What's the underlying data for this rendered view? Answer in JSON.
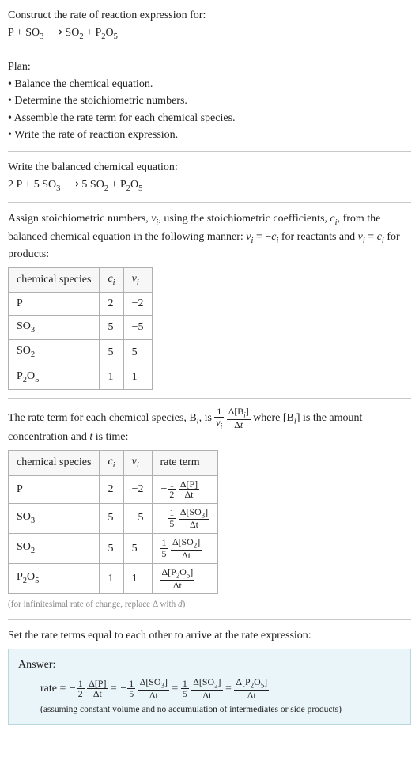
{
  "header": {
    "prompt": "Construct the rate of reaction expression for:",
    "eq_parts": {
      "lhs_a": "P",
      "plus": " + ",
      "lhs_b": "SO",
      "lhs_b_sub": "3",
      "arrow": " ⟶ ",
      "rhs_a": "SO",
      "rhs_a_sub": "2",
      "rhs_b": "P",
      "rhs_b_sub1": "2",
      "rhs_b_mid": "O",
      "rhs_b_sub2": "5"
    }
  },
  "plan": {
    "title": "Plan:",
    "items": [
      "Balance the chemical equation.",
      "Determine the stoichiometric numbers.",
      "Assemble the rate term for each chemical species.",
      "Write the rate of reaction expression."
    ],
    "bullet": "• "
  },
  "balanced": {
    "title": "Write the balanced chemical equation:",
    "eq": {
      "c1": "2 ",
      "s1": "P",
      "plus1": " + ",
      "c2": "5 ",
      "s2": "SO",
      "s2sub": "3",
      "arrow": " ⟶ ",
      "c3": "5 ",
      "s3": "SO",
      "s3sub": "2",
      "plus2": " + ",
      "s4a": "P",
      "s4sub1": "2",
      "s4b": "O",
      "s4sub2": "5"
    }
  },
  "assign": {
    "pre": "Assign stoichiometric numbers, ",
    "nu": "ν",
    "isub": "i",
    "mid1": ", using the stoichiometric coefficients, ",
    "c": "c",
    "mid2": ", from the balanced chemical equation in the following manner: ",
    "eq1a": "ν",
    "eq1b": " = −",
    "eq1c": "c",
    "mid3": " for reactants and ",
    "eq2a": "ν",
    "eq2b": " = ",
    "eq2c": "c",
    "mid4": " for products:"
  },
  "table1": {
    "h1": "chemical species",
    "h2": "c",
    "h2sub": "i",
    "h3": "ν",
    "h3sub": "i",
    "rows": [
      {
        "sp": "P",
        "sub1": "",
        "mid": "",
        "sub2": "",
        "c": "2",
        "v": "−2"
      },
      {
        "sp": "SO",
        "sub1": "3",
        "mid": "",
        "sub2": "",
        "c": "5",
        "v": "−5"
      },
      {
        "sp": "SO",
        "sub1": "2",
        "mid": "",
        "sub2": "",
        "c": "5",
        "v": "5"
      },
      {
        "sp": "P",
        "sub1": "2",
        "mid": "O",
        "sub2": "5",
        "c": "1",
        "v": "1"
      }
    ]
  },
  "rateterm": {
    "pre": "The rate term for each chemical species, B",
    "isub": "i",
    "mid1": ", is ",
    "frac1_num": "1",
    "frac1_den_a": "ν",
    "frac1_den_sub": "i",
    "frac2_num_a": "Δ[B",
    "frac2_num_sub": "i",
    "frac2_num_b": "]",
    "frac2_den_a": "Δ",
    "frac2_den_t": "t",
    "mid2": " where [B",
    "mid2b": "] is the amount concentration and ",
    "t": "t",
    "mid3": " is time:"
  },
  "table2": {
    "h1": "chemical species",
    "h2": "c",
    "h2sub": "i",
    "h3": "ν",
    "h3sub": "i",
    "h4": "rate term",
    "rows": [
      {
        "sp": "P",
        "sub1": "",
        "mid": "",
        "sub2": "",
        "c": "2",
        "v": "−2",
        "neg": "−",
        "fnum": "1",
        "fden": "2",
        "dnum": "Δ[P]",
        "dden": "Δt"
      },
      {
        "sp": "SO",
        "sub1": "3",
        "mid": "",
        "sub2": "",
        "c": "5",
        "v": "−5",
        "neg": "−",
        "fnum": "1",
        "fden": "5",
        "dnum": "Δ[SO",
        "dnum_sub": "3",
        "dnum_b": "]",
        "dden": "Δt"
      },
      {
        "sp": "SO",
        "sub1": "2",
        "mid": "",
        "sub2": "",
        "c": "5",
        "v": "5",
        "neg": "",
        "fnum": "1",
        "fden": "5",
        "dnum": "Δ[SO",
        "dnum_sub": "2",
        "dnum_b": "]",
        "dden": "Δt"
      },
      {
        "sp": "P",
        "sub1": "2",
        "mid": "O",
        "sub2": "5",
        "c": "1",
        "v": "1",
        "neg": "",
        "fnum": "",
        "fden": "",
        "dnum": "Δ[P",
        "dnum_sub": "2",
        "dnum_mid": "O",
        "dnum_sub2": "5",
        "dnum_b": "]",
        "dden": "Δt"
      }
    ],
    "note_a": "(for infinitesimal rate of change, replace Δ with ",
    "note_d": "d",
    "note_b": ")"
  },
  "final": {
    "prompt": "Set the rate terms equal to each other to arrive at the rate expression:"
  },
  "answer": {
    "label": "Answer:",
    "rate": "rate = ",
    "t1": {
      "neg": "−",
      "fn": "1",
      "fd": "2",
      "dn": "Δ[P]",
      "dd": "Δt"
    },
    "eq": " = ",
    "t2": {
      "neg": "−",
      "fn": "1",
      "fd": "5",
      "dn_a": "Δ[SO",
      "dn_sub": "3",
      "dn_b": "]",
      "dd": "Δt"
    },
    "t3": {
      "neg": "",
      "fn": "1",
      "fd": "5",
      "dn_a": "Δ[SO",
      "dn_sub": "2",
      "dn_b": "]",
      "dd": "Δt"
    },
    "t4": {
      "dn_a": "Δ[P",
      "dn_sub1": "2",
      "dn_mid": "O",
      "dn_sub2": "5",
      "dn_b": "]",
      "dd": "Δt"
    },
    "assume": "(assuming constant volume and no accumulation of intermediates or side products)"
  },
  "colors": {
    "rule": "#c8c8c8",
    "table_border": "#b0b0b0",
    "note": "#888888",
    "answer_bg": "#eaf5f9",
    "answer_border": "#b8d8e0"
  }
}
